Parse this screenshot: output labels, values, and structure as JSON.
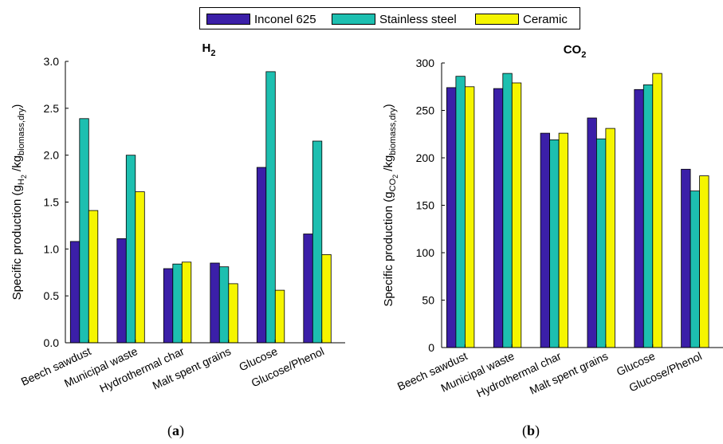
{
  "legend": {
    "items": [
      {
        "label": "Inconel 625",
        "color": "#3b1fa8"
      },
      {
        "label": "Stainless steel",
        "color": "#1dbfb0"
      },
      {
        "label": "Ceramic",
        "color": "#f5f500"
      }
    ]
  },
  "captions": {
    "a_open": "(",
    "a_letter": "a",
    "a_close": ")",
    "b_open": "(",
    "b_letter": "b",
    "b_close": ")"
  },
  "chart_data": [
    {
      "type": "bar",
      "title": "H₂",
      "title_main": "H",
      "title_sub": "2",
      "ylabel_parts": [
        "Specific production (g",
        "H",
        "2",
        " /kg",
        "biomass,dry",
        ")"
      ],
      "categories": [
        "Beech sawdust",
        "Municipal waste",
        "Hydrothermal char",
        "Malt spent grains",
        "Glucose",
        "Glucose/Phenol"
      ],
      "ylim": [
        0,
        3.0
      ],
      "yticks": [
        "0.0",
        "0.5",
        "1.0",
        "1.5",
        "2.0",
        "2.5",
        "3.0"
      ],
      "series": [
        {
          "name": "Inconel 625",
          "values": [
            1.08,
            1.11,
            0.79,
            0.85,
            1.87,
            1.16
          ]
        },
        {
          "name": "Stainless steel",
          "values": [
            2.39,
            2.0,
            0.84,
            0.81,
            2.89,
            2.15
          ]
        },
        {
          "name": "Ceramic",
          "values": [
            1.41,
            1.61,
            0.86,
            0.63,
            0.56,
            0.94
          ]
        }
      ],
      "grid": false
    },
    {
      "type": "bar",
      "title": "CO₂",
      "title_main": "CO",
      "title_sub": "2",
      "ylabel_parts": [
        "Specific production (g",
        "CO",
        "2",
        " /kg",
        "biomass,dry",
        ")"
      ],
      "categories": [
        "Beech sawdust",
        "Municipal waste",
        "Hydrothermal char",
        "Malt spent grains",
        "Glucose",
        "Glucose/Phenol"
      ],
      "ylim": [
        0,
        300
      ],
      "yticks": [
        "0",
        "50",
        "100",
        "150",
        "200",
        "250",
        "300"
      ],
      "series": [
        {
          "name": "Inconel 625",
          "values": [
            274,
            273,
            226,
            242,
            272,
            188
          ]
        },
        {
          "name": "Stainless steel",
          "values": [
            286,
            289,
            219,
            220,
            277,
            165
          ]
        },
        {
          "name": "Ceramic",
          "values": [
            275,
            279,
            226,
            231,
            289,
            181
          ]
        }
      ],
      "grid": false
    }
  ]
}
